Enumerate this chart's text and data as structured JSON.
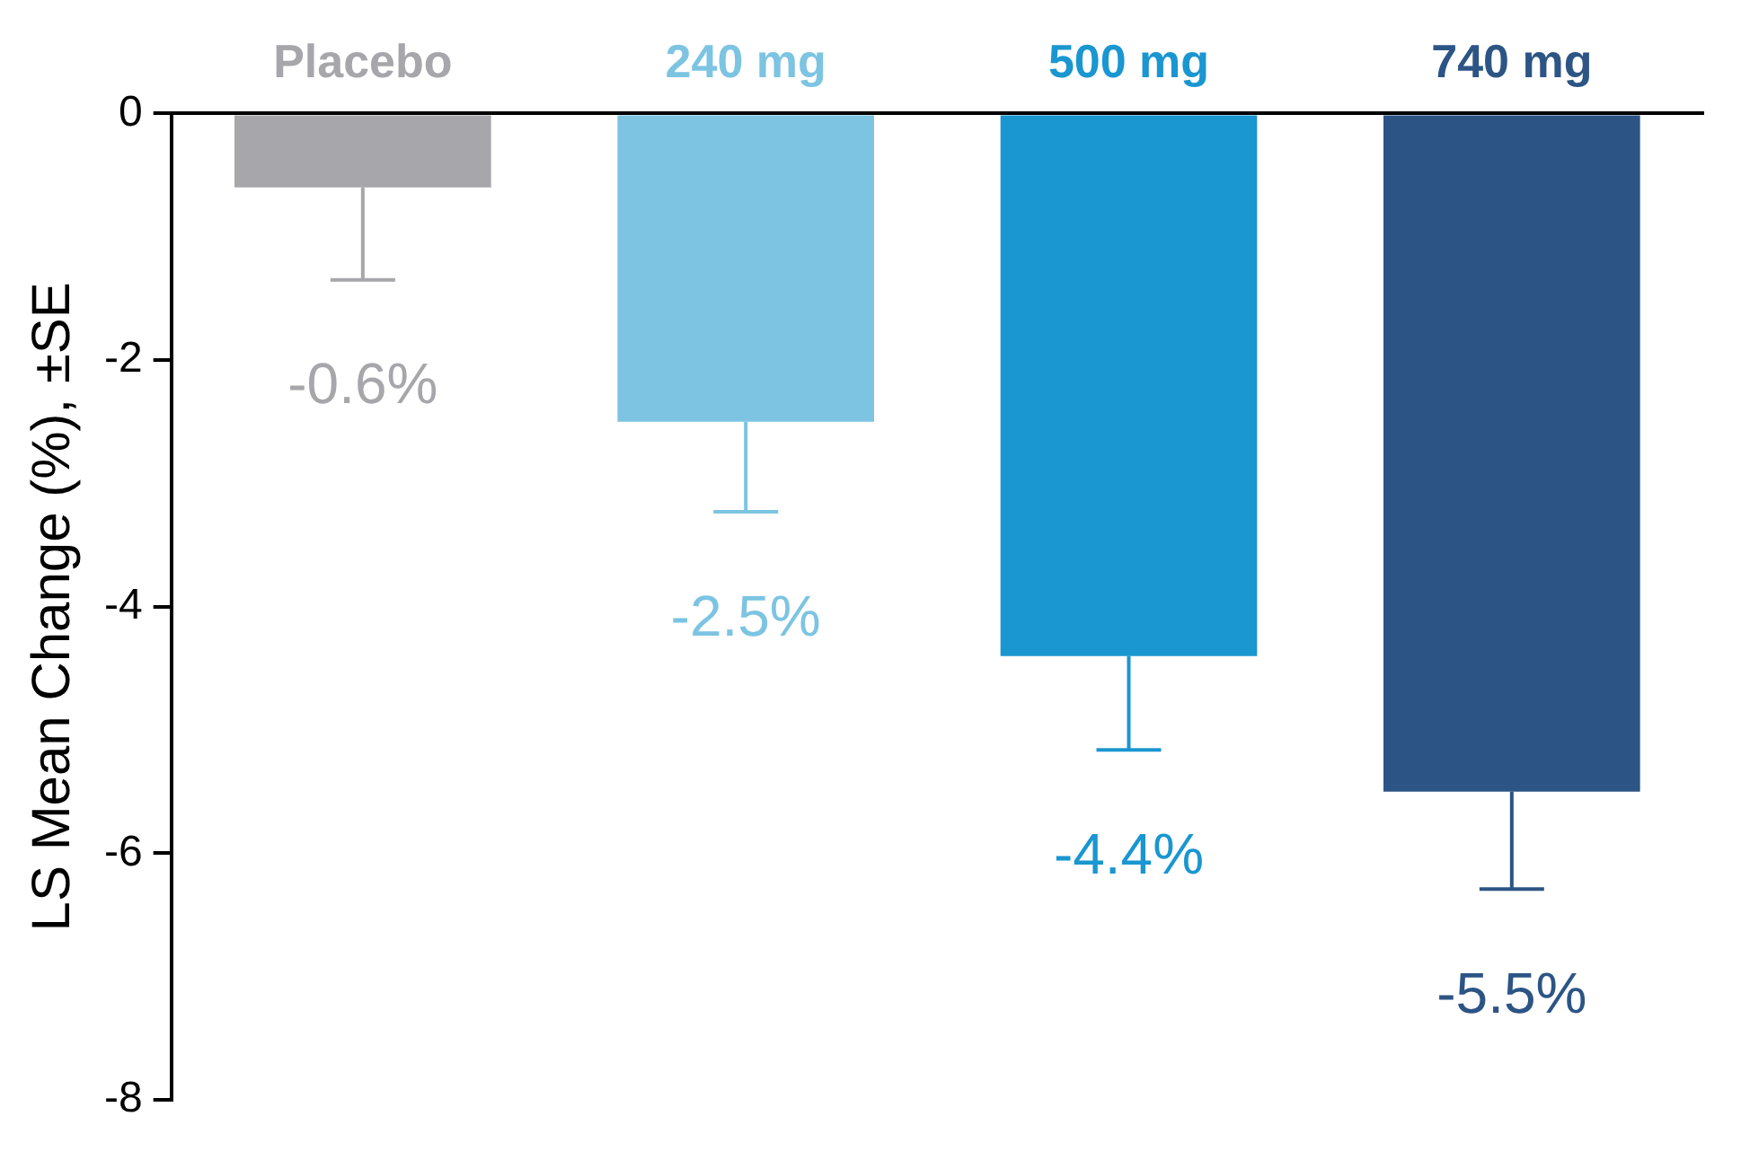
{
  "chart_data": {
    "type": "bar",
    "ylabel": "LS Mean Change (%), ±SE",
    "categories": [
      "Placebo",
      "240 mg",
      "500 mg",
      "740 mg"
    ],
    "values": [
      -0.6,
      -2.5,
      -4.4,
      -5.5
    ],
    "colors": [
      "#a7a6ab",
      "#7cc4e2",
      "#1a96d0",
      "#2c5585"
    ],
    "errors": [
      [
        -1.35,
        -0.6
      ],
      [
        -3.23,
        -2.5
      ],
      [
        -5.16,
        -4.4
      ],
      [
        -6.29,
        -5.5
      ]
    ],
    "value_labels": [
      "-0.6%",
      "-2.5%",
      "-4.4%",
      "-5.5%"
    ],
    "ylim": [
      -8,
      0
    ],
    "yticks": [
      0,
      -2,
      -4,
      -6,
      -8
    ],
    "grid": false,
    "legend": false
  }
}
